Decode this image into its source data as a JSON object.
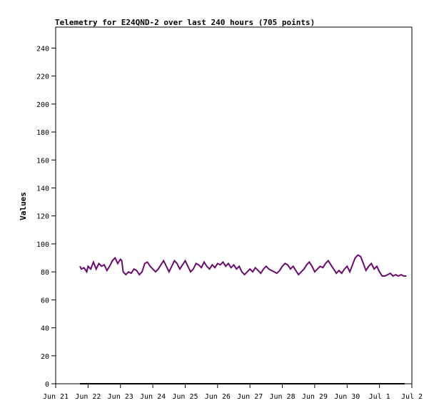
{
  "chart_data": {
    "type": "line",
    "title": "Telemetry for E24QND-2 over last 240 hours (705 points)",
    "xlabel": "",
    "ylabel": "Values",
    "x_tick_labels": [
      "Jun 21",
      "Jun 22",
      "Jun 23",
      "Jun 24",
      "Jun 25",
      "Jun 26",
      "Jun 27",
      "Jun 28",
      "Jun 29",
      "Jun 30",
      "Jul 1",
      "Jul 2"
    ],
    "xlim": [
      "Jun 21 00:00",
      "Jul 2 00:00"
    ],
    "ylim": [
      0,
      255
    ],
    "y_ticks": [
      0,
      20,
      40,
      60,
      80,
      100,
      120,
      140,
      160,
      180,
      200,
      220,
      240
    ],
    "grid": false,
    "line_color": "#6a0a6e",
    "baseline_color": "#000000",
    "series": [
      {
        "x_start": "Jun 21 18:00",
        "x_end": "Jul 2 00:00",
        "baseline_value": 0,
        "points": [
          [
            "Jun 21 18:00",
            84
          ],
          [
            "Jun 21 19:00",
            82
          ],
          [
            "Jun 21 21:00",
            83
          ],
          [
            "Jun 21 23:00",
            80
          ],
          [
            "Jun 22 00:00",
            84
          ],
          [
            "Jun 22 02:00",
            82
          ],
          [
            "Jun 22 04:00",
            87
          ],
          [
            "Jun 22 06:00",
            82
          ],
          [
            "Jun 22 08:00",
            86
          ],
          [
            "Jun 22 10:00",
            84
          ],
          [
            "Jun 22 12:00",
            85
          ],
          [
            "Jun 22 14:00",
            81
          ],
          [
            "Jun 22 16:00",
            84
          ],
          [
            "Jun 22 18:00",
            88
          ],
          [
            "Jun 22 20:00",
            90
          ],
          [
            "Jun 22 22:00",
            86
          ],
          [
            "Jun 23 00:00",
            89
          ],
          [
            "Jun 23 01:00",
            88
          ],
          [
            "Jun 23 02:00",
            80
          ],
          [
            "Jun 23 04:00",
            78
          ],
          [
            "Jun 23 06:00",
            80
          ],
          [
            "Jun 23 08:00",
            79
          ],
          [
            "Jun 23 10:00",
            82
          ],
          [
            "Jun 23 12:00",
            81
          ],
          [
            "Jun 23 14:00",
            78
          ],
          [
            "Jun 23 16:00",
            80
          ],
          [
            "Jun 23 18:00",
            86
          ],
          [
            "Jun 23 20:00",
            87
          ],
          [
            "Jun 23 22:00",
            84
          ],
          [
            "Jun 24 00:00",
            82
          ],
          [
            "Jun 24 02:00",
            80
          ],
          [
            "Jun 24 04:00",
            82
          ],
          [
            "Jun 24 06:00",
            85
          ],
          [
            "Jun 24 08:00",
            88
          ],
          [
            "Jun 24 10:00",
            84
          ],
          [
            "Jun 24 12:00",
            80
          ],
          [
            "Jun 24 14:00",
            84
          ],
          [
            "Jun 24 16:00",
            88
          ],
          [
            "Jun 24 18:00",
            86
          ],
          [
            "Jun 24 20:00",
            82
          ],
          [
            "Jun 24 22:00",
            85
          ],
          [
            "Jun 25 00:00",
            88
          ],
          [
            "Jun 25 02:00",
            84
          ],
          [
            "Jun 25 04:00",
            80
          ],
          [
            "Jun 25 06:00",
            82
          ],
          [
            "Jun 25 08:00",
            86
          ],
          [
            "Jun 25 10:00",
            85
          ],
          [
            "Jun 25 12:00",
            83
          ],
          [
            "Jun 25 14:00",
            87
          ],
          [
            "Jun 25 16:00",
            84
          ],
          [
            "Jun 25 18:00",
            82
          ],
          [
            "Jun 25 20:00",
            85
          ],
          [
            "Jun 25 22:00",
            83
          ],
          [
            "Jun 26 00:00",
            86
          ],
          [
            "Jun 26 02:00",
            85
          ],
          [
            "Jun 26 04:00",
            87
          ],
          [
            "Jun 26 06:00",
            84
          ],
          [
            "Jun 26 08:00",
            86
          ],
          [
            "Jun 26 10:00",
            83
          ],
          [
            "Jun 26 12:00",
            85
          ],
          [
            "Jun 26 14:00",
            82
          ],
          [
            "Jun 26 16:00",
            84
          ],
          [
            "Jun 26 18:00",
            80
          ],
          [
            "Jun 26 20:00",
            78
          ],
          [
            "Jun 26 22:00",
            80
          ],
          [
            "Jun 27 00:00",
            82
          ],
          [
            "Jun 27 02:00",
            80
          ],
          [
            "Jun 27 04:00",
            83
          ],
          [
            "Jun 27 06:00",
            81
          ],
          [
            "Jun 27 08:00",
            79
          ],
          [
            "Jun 27 10:00",
            82
          ],
          [
            "Jun 27 12:00",
            84
          ],
          [
            "Jun 27 14:00",
            82
          ],
          [
            "Jun 27 16:00",
            81
          ],
          [
            "Jun 27 18:00",
            80
          ],
          [
            "Jun 27 20:00",
            79
          ],
          [
            "Jun 27 22:00",
            81
          ],
          [
            "Jun 28 00:00",
            84
          ],
          [
            "Jun 28 02:00",
            86
          ],
          [
            "Jun 28 04:00",
            85
          ],
          [
            "Jun 28 06:00",
            82
          ],
          [
            "Jun 28 08:00",
            84
          ],
          [
            "Jun 28 10:00",
            81
          ],
          [
            "Jun 28 12:00",
            78
          ],
          [
            "Jun 28 14:00",
            80
          ],
          [
            "Jun 28 16:00",
            82
          ],
          [
            "Jun 28 18:00",
            85
          ],
          [
            "Jun 28 20:00",
            87
          ],
          [
            "Jun 28 22:00",
            84
          ],
          [
            "Jun 29 00:00",
            80
          ],
          [
            "Jun 29 02:00",
            82
          ],
          [
            "Jun 29 04:00",
            84
          ],
          [
            "Jun 29 06:00",
            83
          ],
          [
            "Jun 29 08:00",
            86
          ],
          [
            "Jun 29 10:00",
            88
          ],
          [
            "Jun 29 12:00",
            85
          ],
          [
            "Jun 29 14:00",
            82
          ],
          [
            "Jun 29 16:00",
            79
          ],
          [
            "Jun 29 18:00",
            81
          ],
          [
            "Jun 29 20:00",
            79
          ],
          [
            "Jun 29 22:00",
            82
          ],
          [
            "Jun 30 00:00",
            84
          ],
          [
            "Jun 30 02:00",
            80
          ],
          [
            "Jun 30 04:00",
            85
          ],
          [
            "Jun 30 06:00",
            90
          ],
          [
            "Jun 30 08:00",
            92
          ],
          [
            "Jun 30 10:00",
            91
          ],
          [
            "Jun 30 12:00",
            86
          ],
          [
            "Jun 30 14:00",
            81
          ],
          [
            "Jun 30 16:00",
            84
          ],
          [
            "Jun 30 18:00",
            86
          ],
          [
            "Jun 30 20:00",
            82
          ],
          [
            "Jun 30 22:00",
            84
          ],
          [
            "Jul 1 00:00",
            80
          ],
          [
            "Jul 1 02:00",
            77
          ],
          [
            "Jul 1 04:00",
            77
          ],
          [
            "Jul 1 06:00",
            78
          ],
          [
            "Jul 1 08:00",
            79
          ],
          [
            "Jul 1 10:00",
            77
          ],
          [
            "Jul 1 12:00",
            78
          ],
          [
            "Jul 1 14:00",
            77
          ],
          [
            "Jul 1 16:00",
            78
          ],
          [
            "Jul 1 18:00",
            77
          ],
          [
            "Jul 1 20:00",
            77
          ]
        ]
      }
    ]
  }
}
